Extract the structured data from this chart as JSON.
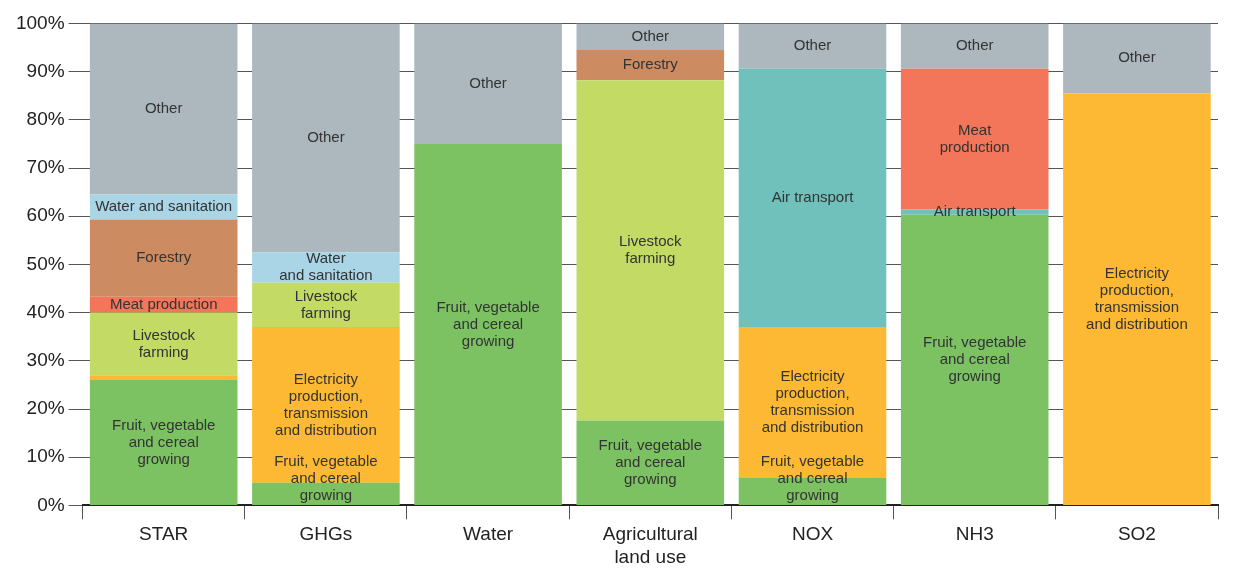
{
  "chart_data": {
    "type": "bar",
    "stacked": true,
    "categories": [
      "STAR",
      "GHGs",
      "Water",
      "Agricultural\nland use",
      "NOX",
      "NH3",
      "SO2"
    ],
    "series": [
      {
        "name": "Fruit, vegetable\nand cereal\ngrowing",
        "color": "#7cc263",
        "values": [
          26,
          4.7,
          75,
          17.6,
          5.7,
          60.3,
          null
        ]
      },
      {
        "name": "Electricity\nproduction,\ntransmission\nand distribution",
        "color": "#fdb933",
        "values": [
          1,
          32.3,
          null,
          null,
          31.3,
          null,
          85.5
        ]
      },
      {
        "name": "Livestock\nfarming",
        "color": "#c3da65",
        "values": [
          13,
          9.2,
          null,
          70.6,
          null,
          null,
          null
        ]
      },
      {
        "name": "Air transport",
        "color": "#70c0bc",
        "values": [
          null,
          null,
          null,
          null,
          53.6,
          1.1,
          null
        ]
      },
      {
        "name": "Meat\nproduction",
        "color": "#f3765a",
        "values": [
          3.3,
          null,
          null,
          null,
          null,
          29.2,
          null
        ]
      },
      {
        "name": "Forestry",
        "color": "#cd8b62",
        "values": [
          16,
          null,
          null,
          6.3,
          null,
          null,
          null
        ]
      },
      {
        "name": "Water\nand sanitation",
        "color": "#a9d5e6",
        "values": [
          5.2,
          6.3,
          null,
          null,
          null,
          null,
          null
        ]
      },
      {
        "name": "Other",
        "color": "#acb8be",
        "values": [
          35.5,
          47.5,
          25,
          5.5,
          9.4,
          9.4,
          14.5
        ]
      }
    ],
    "ylim": [
      0,
      100
    ],
    "yticks": [
      {
        "value": 0,
        "label": "0%"
      },
      {
        "value": 10,
        "label": "10%"
      },
      {
        "value": 20,
        "label": "20%"
      },
      {
        "value": 30,
        "label": "30%"
      },
      {
        "value": 40,
        "label": "40%"
      },
      {
        "value": 50,
        "label": "50%"
      },
      {
        "value": 60,
        "label": "60%"
      },
      {
        "value": 70,
        "label": "70%"
      },
      {
        "value": 80,
        "label": "80%"
      },
      {
        "value": 90,
        "label": "90%"
      },
      {
        "value": 100,
        "label": "100%"
      }
    ],
    "grid": "y",
    "legend": false
  }
}
